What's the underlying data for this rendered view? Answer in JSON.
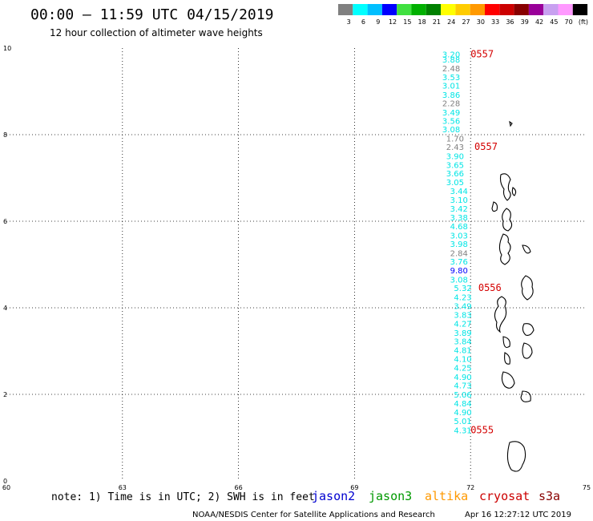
{
  "header": {
    "title": "00:00 – 11:59 UTC 04/15/2019",
    "subtitle": "12 hour collection of altimeter wave heights"
  },
  "color_scale": {
    "labels": [
      "3",
      "6",
      "9",
      "12",
      "15",
      "18",
      "21",
      "24",
      "27",
      "30",
      "33",
      "36",
      "39",
      "42",
      "45",
      "70",
      "(ft)"
    ],
    "colors": [
      "#808080",
      "#00ffff",
      "#00bfff",
      "#0000ff",
      "#40e040",
      "#00b000",
      "#008000",
      "#ffff00",
      "#ffcc00",
      "#ff9900",
      "#ff0000",
      "#cc0000",
      "#880000",
      "#990099",
      "#c8a0f0",
      "#ff99ff",
      "#000000"
    ]
  },
  "chart_data": {
    "type": "scatter",
    "title": "00:00 – 11:59 UTC 04/15/2019",
    "subtitle": "12 hour collection of altimeter wave heights",
    "xlim": [
      60,
      75
    ],
    "ylim": [
      0,
      10
    ],
    "x_ticks": [
      "60",
      "63",
      "66",
      "69",
      "72",
      "75"
    ],
    "y_ticks": [
      "0",
      "2",
      "4",
      "6",
      "8",
      "10"
    ],
    "grid": true,
    "series": [
      {
        "name": "jason3",
        "color": "#00e5e5",
        "points": [
          {
            "x": 71.5,
            "y": 9.86,
            "v": "3.20"
          },
          {
            "x": 71.5,
            "y": 9.74,
            "v": "3.88"
          },
          {
            "x": 71.5,
            "y": 9.54,
            "v": "2.48",
            "color": "#808080"
          },
          {
            "x": 71.5,
            "y": 9.33,
            "v": "3.53"
          },
          {
            "x": 71.5,
            "y": 9.14,
            "v": "3.01"
          },
          {
            "x": 71.5,
            "y": 8.93,
            "v": "3.86"
          },
          {
            "x": 71.5,
            "y": 8.73,
            "v": "2.28",
            "color": "#808080"
          },
          {
            "x": 71.5,
            "y": 8.52,
            "v": "3.49"
          },
          {
            "x": 71.5,
            "y": 8.32,
            "v": "3.56"
          },
          {
            "x": 71.5,
            "y": 8.13,
            "v": "3.08"
          },
          {
            "x": 71.6,
            "y": 7.92,
            "v": "1.70",
            "color": "#808080"
          },
          {
            "x": 71.6,
            "y": 7.72,
            "v": "2.43",
            "color": "#808080"
          },
          {
            "x": 71.6,
            "y": 7.51,
            "v": "3.90"
          },
          {
            "x": 71.6,
            "y": 7.31,
            "v": "3.65"
          },
          {
            "x": 71.6,
            "y": 7.11,
            "v": "3.66"
          },
          {
            "x": 71.6,
            "y": 6.91,
            "v": "3.05"
          },
          {
            "x": 71.7,
            "y": 6.7,
            "v": "3.44"
          },
          {
            "x": 71.7,
            "y": 6.5,
            "v": "3.10"
          },
          {
            "x": 71.7,
            "y": 6.3,
            "v": "3.42"
          },
          {
            "x": 71.7,
            "y": 6.09,
            "v": "3.38"
          },
          {
            "x": 71.7,
            "y": 5.89,
            "v": "4.68"
          },
          {
            "x": 71.7,
            "y": 5.68,
            "v": "3.03"
          },
          {
            "x": 71.7,
            "y": 5.48,
            "v": "3.98"
          },
          {
            "x": 71.7,
            "y": 5.27,
            "v": "2.84",
            "color": "#808080"
          },
          {
            "x": 71.7,
            "y": 5.07,
            "v": "3.76"
          },
          {
            "x": 71.7,
            "y": 4.87,
            "v": "9.80",
            "color": "#0000ff"
          },
          {
            "x": 71.7,
            "y": 4.66,
            "v": "3.08"
          },
          {
            "x": 71.8,
            "y": 4.46,
            "v": "5.32"
          },
          {
            "x": 71.8,
            "y": 4.25,
            "v": "4.23"
          },
          {
            "x": 71.8,
            "y": 4.05,
            "v": "3.49"
          },
          {
            "x": 71.8,
            "y": 3.84,
            "v": "3.83"
          },
          {
            "x": 71.8,
            "y": 3.64,
            "v": "4.27"
          },
          {
            "x": 71.8,
            "y": 3.43,
            "v": "3.89"
          },
          {
            "x": 71.8,
            "y": 3.23,
            "v": "3.84"
          },
          {
            "x": 71.8,
            "y": 3.03,
            "v": "4.81"
          },
          {
            "x": 71.8,
            "y": 2.82,
            "v": "4.10"
          },
          {
            "x": 71.8,
            "y": 2.62,
            "v": "4.25"
          },
          {
            "x": 71.8,
            "y": 2.41,
            "v": "4.90"
          },
          {
            "x": 71.8,
            "y": 2.21,
            "v": "4.73"
          },
          {
            "x": 71.8,
            "y": 2.0,
            "v": "5.06"
          },
          {
            "x": 71.8,
            "y": 1.8,
            "v": "4.84"
          },
          {
            "x": 71.8,
            "y": 1.59,
            "v": "4.90"
          },
          {
            "x": 71.8,
            "y": 1.39,
            "v": "5.01"
          },
          {
            "x": 71.8,
            "y": 1.18,
            "v": "4.31"
          }
        ]
      }
    ],
    "time_labels": [
      {
        "x": 72.0,
        "y": 9.86,
        "v": "0557"
      },
      {
        "x": 72.1,
        "y": 7.72,
        "v": "0557"
      },
      {
        "x": 72.2,
        "y": 4.46,
        "v": "0556"
      },
      {
        "x": 72.0,
        "y": 1.18,
        "v": "0555"
      }
    ]
  },
  "footer": {
    "note": "note: 1) Time is in UTC; 2) SWH is in feet",
    "satellites": [
      {
        "name": "jason2",
        "color": "#0000d0"
      },
      {
        "name": "jason3",
        "color": "#009900"
      },
      {
        "name": "altika",
        "color": "#ff9900"
      },
      {
        "name": "cryosat",
        "color": "#cc0000"
      },
      {
        "name": "s3a",
        "color": "#880000"
      }
    ],
    "credit": "NOAA/NESDIS Center for Satellite Applications and Research",
    "timestamp": "Apr 16 12:27:12 UTC 2019"
  }
}
